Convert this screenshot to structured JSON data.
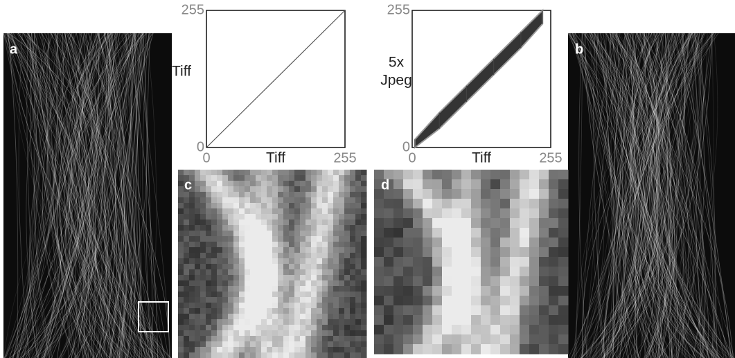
{
  "panel_labels": [
    "a",
    "b",
    "c",
    "d"
  ],
  "chart_data": [
    {
      "type": "line",
      "x_label": "Tiff",
      "y_label": [
        "Tiff"
      ],
      "x": [
        0,
        255
      ],
      "values": [
        0,
        255
      ],
      "color": "#555555",
      "xlim": [
        0,
        255
      ],
      "ylim": [
        0,
        255
      ],
      "xticks": [
        0,
        255
      ],
      "yticks": [
        0,
        255
      ]
    },
    {
      "type": "band",
      "x_label": "Tiff",
      "y_label": [
        "5x",
        "Jpeg"
      ],
      "x": [
        5,
        50,
        100,
        150,
        200,
        240
      ],
      "lower": [
        0,
        35,
        85,
        135,
        185,
        230
      ],
      "upper": [
        15,
        65,
        115,
        165,
        215,
        255
      ],
      "color": "#111111",
      "xlim": [
        0,
        255
      ],
      "ylim": [
        0,
        255
      ],
      "xticks": [
        0,
        255
      ],
      "yticks": [
        0,
        255
      ]
    }
  ]
}
